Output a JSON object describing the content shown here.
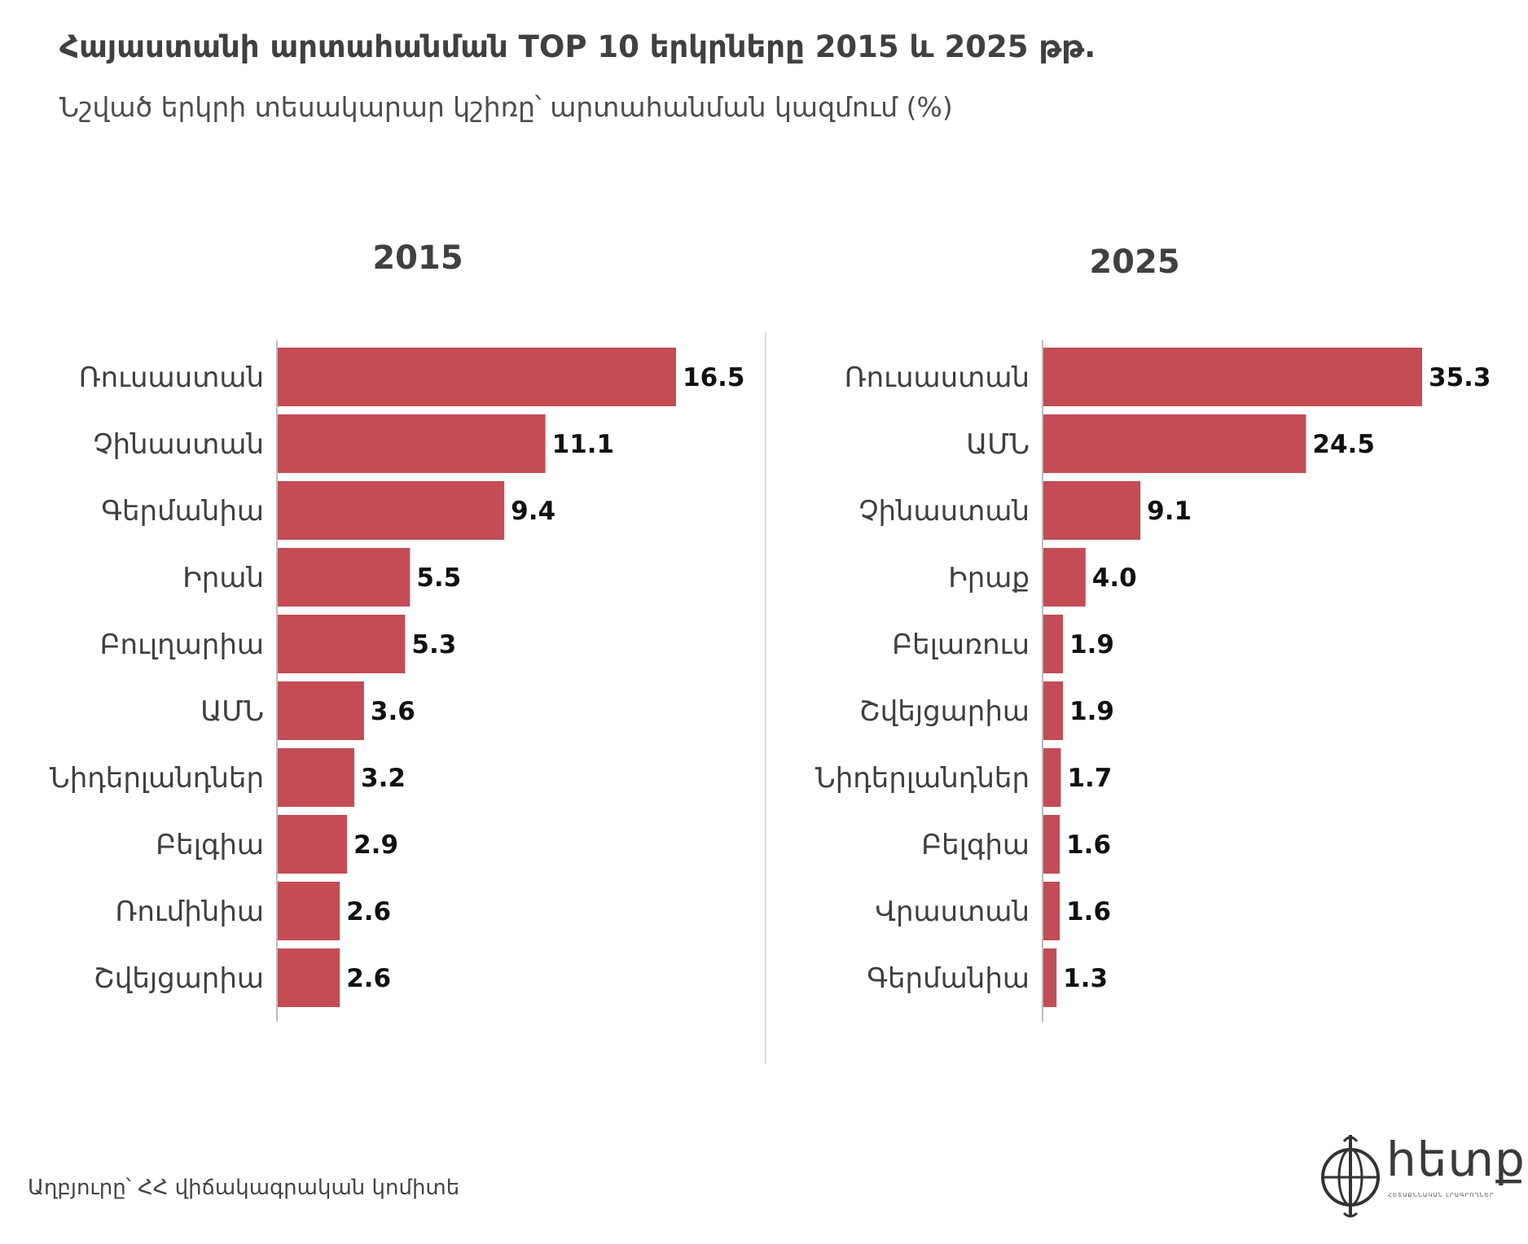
{
  "title": "Հայաստանի արտահանման TOP 10 երկրները 2015 և 2025 թթ.",
  "subtitle": "Նշված երկրի տեսակարար կշիռը՝ արտահանման կազմում (%)",
  "source": "Աղբյուրը՝ ՀՀ վիճակագրական կոմիտե",
  "logo": {
    "text": "hետք",
    "tagline": "ՀԵՏԱՔՆՆԱԿԱՆ ԼՐԱԳՐՈՂՆԵՐ",
    "icon": "globe-icon"
  },
  "colors": {
    "bar": "#c34c55",
    "axis": "#bdbdbd",
    "divider": "#dddddd",
    "value_text": "#111111",
    "label_text": "#3f3f3f"
  },
  "chart_data": [
    {
      "type": "bar",
      "orientation": "horizontal",
      "title": "2015",
      "categories": [
        "Ռուսաստան",
        "Չինաստան",
        "Գերմանիա",
        "Իրան",
        "Բուլղարիա",
        "ԱՄՆ",
        "Նիդերլանդներ",
        "Բելգիա",
        "Ռումինիա",
        "Շվեյցարիա"
      ],
      "values": [
        16.5,
        11.1,
        9.4,
        5.5,
        5.3,
        3.6,
        3.2,
        2.9,
        2.6,
        2.6
      ],
      "value_labels": [
        "16.5",
        "11.1",
        "9.4",
        "5.5",
        "5.3",
        "3.6",
        "3.2",
        "2.9",
        "2.6",
        "2.6"
      ],
      "xlim": [
        0,
        16.5
      ],
      "grid": false
    },
    {
      "type": "bar",
      "orientation": "horizontal",
      "title": "2025",
      "categories": [
        "Ռուսաստան",
        "ԱՄՆ",
        "Չինաստան",
        "Իրաք",
        "Բելառուս",
        "Շվեյցարիա",
        "Նիդերլանդներ",
        "Բելգիա",
        "Վրաստան",
        "Գերմանիա"
      ],
      "values": [
        35.3,
        24.5,
        9.1,
        4.0,
        1.9,
        1.9,
        1.7,
        1.6,
        1.6,
        1.3
      ],
      "value_labels": [
        "35.3",
        "24.5",
        "9.1",
        "4.0",
        "1.9",
        "1.9",
        "1.7",
        "1.6",
        "1.6",
        "1.3"
      ],
      "xlim": [
        0,
        35.3
      ],
      "grid": false
    }
  ]
}
